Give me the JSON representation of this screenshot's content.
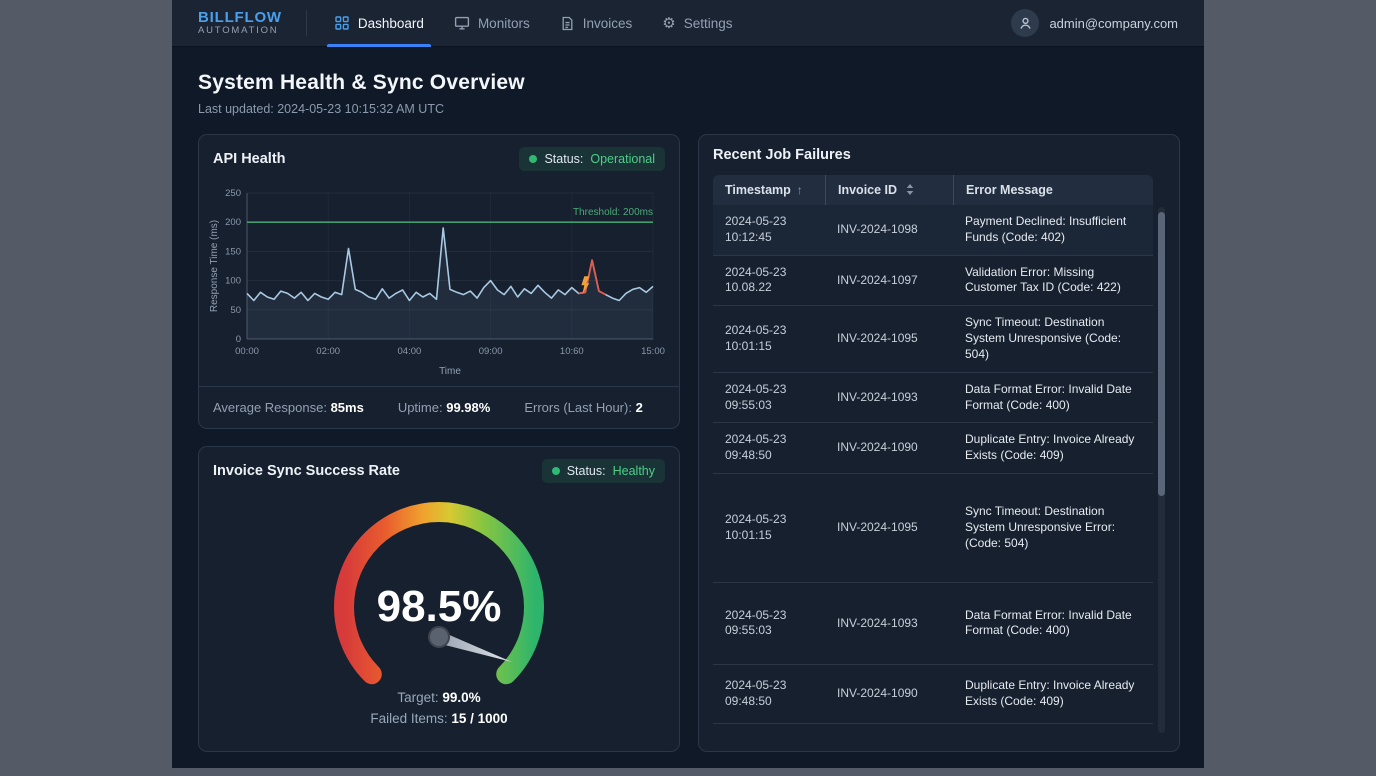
{
  "header": {
    "logo": {
      "title": "BILLFLOW",
      "subtitle": "AUTOMATION"
    },
    "nav": [
      {
        "label": "Dashboard",
        "icon": "dashboard-grid-icon",
        "active": true
      },
      {
        "label": "Monitors",
        "icon": "monitor-icon",
        "active": false
      },
      {
        "label": "Invoices",
        "icon": "invoice-document-icon",
        "active": false
      },
      {
        "label": "Settings",
        "icon": "gear-icon",
        "active": false
      }
    ],
    "user_email": "admin@company.com"
  },
  "page": {
    "title": "System Health & Sync Overview",
    "last_updated": "Last updated: 2024-05-23 10:15:32 AM UTC"
  },
  "api_health": {
    "title": "API Health",
    "status_label": "Status:",
    "status_value": "Operational",
    "stats": [
      {
        "label": "Average Response: ",
        "value": "85ms"
      },
      {
        "label": "Uptime: ",
        "value": "99.98%"
      },
      {
        "label": "Errors (Last Hour): ",
        "value": "2"
      }
    ]
  },
  "sync_card": {
    "title": "Invoice Sync Success Rate",
    "status_label": "Status:",
    "status_value": "Healthy",
    "gauge_display": "98.5%",
    "target_label": "Target: ",
    "target_value": "99.0%",
    "failed_label": "Failed Items: ",
    "failed_value": "15 / 1000"
  },
  "failures": {
    "title": "Recent Job Failures",
    "columns": [
      "Timestamp",
      "Invoice ID",
      "Error Message"
    ],
    "sort": {
      "timestamp": "asc-arrow",
      "invoice_id": "both-arrows"
    },
    "rows": [
      {
        "date": "2024-05-23",
        "time": "10:12:45",
        "invoice_id": "INV-2024-1098",
        "error": "Payment Declined: Insufficient Funds (Code: 402)"
      },
      {
        "date": "2024-05-23",
        "time": "10.08.22",
        "invoice_id": "INV-2024-1097",
        "error": "Validation Error: Missing Customer Tax ID (Code: 422)"
      },
      {
        "date": "2024-05-23",
        "time": "10:01:15",
        "invoice_id": "INV-2024-1095",
        "error": "Sync Timeout: Destination System Unresponsive (Code: 504)"
      },
      {
        "date": "2024-05-23",
        "time": "09:55:03",
        "invoice_id": "INV-2024-1093",
        "error": "Data Format Error: Invalid Date Format (Code: 400)"
      },
      {
        "date": "2024-05-23",
        "time": "09:48:50",
        "invoice_id": "INV-2024-1090",
        "error": "Duplicate Entry: Invoice Already Exists (Code: 409)"
      },
      {
        "date": "2024-05-23",
        "time": "10:01:15",
        "invoice_id": "INV-2024-1095",
        "error": "Sync Timeout: Destination System Unresponsive Error: (Code: 504)"
      },
      {
        "date": "2024-05-23",
        "time": "09:55:03",
        "invoice_id": "INV-2024-1093",
        "error": "Data Format Error: Invalid Date Format (Code: 400)"
      },
      {
        "date": "2024-05-23",
        "time": "09:48:50",
        "invoice_id": "INV-2024-1090",
        "error": "Duplicate Entry: Invoice Already Exists (Code: 409)"
      }
    ]
  },
  "chart_data": [
    {
      "type": "line",
      "title": "API Health response time",
      "ylabel": "Response Time (ms)",
      "xlabel": "Time",
      "ylim": [
        0,
        250
      ],
      "yticks": [
        0,
        50,
        100,
        150,
        200,
        250
      ],
      "xticks": [
        "00:00",
        "02:00",
        "04:00",
        "09:00",
        "10:60",
        "15:00"
      ],
      "grid": true,
      "threshold": 200,
      "threshold_label": "Threshold: 200ms",
      "values": [
        78,
        66,
        80,
        72,
        68,
        82,
        78,
        70,
        80,
        66,
        78,
        72,
        68,
        80,
        76,
        155,
        85,
        80,
        72,
        68,
        86,
        70,
        78,
        84,
        66,
        80,
        72,
        78,
        68,
        190,
        85,
        80,
        76,
        82,
        70,
        88,
        100,
        84,
        76,
        90,
        72,
        86,
        78,
        92,
        80,
        70,
        84,
        76,
        88,
        78,
        80,
        135,
        82,
        76,
        70,
        66,
        78,
        85,
        88,
        80,
        90
      ],
      "red_segment": [
        49,
        53
      ],
      "bolt_index": 50
    },
    {
      "type": "gauge",
      "value": 98.5,
      "display": "98.5%",
      "target": 99.0,
      "failed": 15,
      "total": 1000,
      "arc_colors": [
        "#d63a3a",
        "#e85d2e",
        "#f0a32e",
        "#d6c932",
        "#8cc63f",
        "#2fb56b"
      ]
    }
  ],
  "colors": {
    "accent_blue": "#4aa0ec",
    "active_underline": "#3b82f6",
    "status_green": "#2eba73",
    "threshold_green": "#3fa06c",
    "line_blue": "#a9c9e2",
    "spike_red": "#e05a4e",
    "bolt_orange": "#f0a13c"
  }
}
